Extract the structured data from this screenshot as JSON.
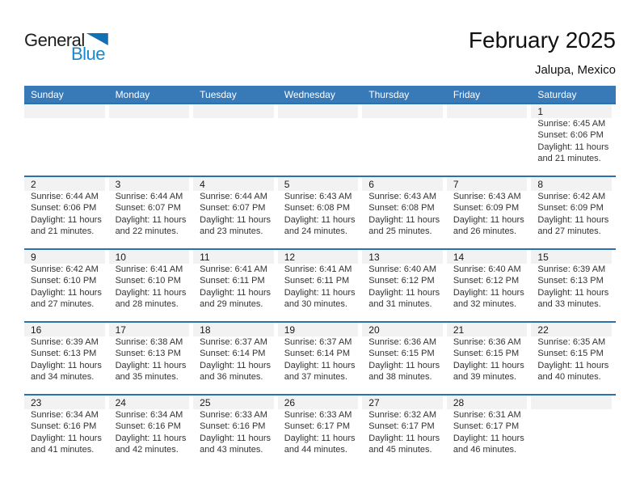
{
  "logo": {
    "part1": "General",
    "part2": "Blue"
  },
  "title": "February 2025",
  "location": "Jalupa, Mexico",
  "weekday_headers": [
    "Sunday",
    "Monday",
    "Tuesday",
    "Wednesday",
    "Thursday",
    "Friday",
    "Saturday"
  ],
  "colors": {
    "header_bg": "#3879b8",
    "row_border": "#2c71ae",
    "number_band_bg": "#f2f2f2",
    "logo_blue_text": "#1988cb",
    "logo_triangle": "#1470b4"
  },
  "weeks": [
    [
      {
        "day": "",
        "lines": []
      },
      {
        "day": "",
        "lines": []
      },
      {
        "day": "",
        "lines": []
      },
      {
        "day": "",
        "lines": []
      },
      {
        "day": "",
        "lines": []
      },
      {
        "day": "",
        "lines": []
      },
      {
        "day": "1",
        "lines": [
          "Sunrise: 6:45 AM",
          "Sunset: 6:06 PM",
          "Daylight: 11 hours",
          "and 21 minutes."
        ]
      }
    ],
    [
      {
        "day": "2",
        "lines": [
          "Sunrise: 6:44 AM",
          "Sunset: 6:06 PM",
          "Daylight: 11 hours",
          "and 21 minutes."
        ]
      },
      {
        "day": "3",
        "lines": [
          "Sunrise: 6:44 AM",
          "Sunset: 6:07 PM",
          "Daylight: 11 hours",
          "and 22 minutes."
        ]
      },
      {
        "day": "4",
        "lines": [
          "Sunrise: 6:44 AM",
          "Sunset: 6:07 PM",
          "Daylight: 11 hours",
          "and 23 minutes."
        ]
      },
      {
        "day": "5",
        "lines": [
          "Sunrise: 6:43 AM",
          "Sunset: 6:08 PM",
          "Daylight: 11 hours",
          "and 24 minutes."
        ]
      },
      {
        "day": "6",
        "lines": [
          "Sunrise: 6:43 AM",
          "Sunset: 6:08 PM",
          "Daylight: 11 hours",
          "and 25 minutes."
        ]
      },
      {
        "day": "7",
        "lines": [
          "Sunrise: 6:43 AM",
          "Sunset: 6:09 PM",
          "Daylight: 11 hours",
          "and 26 minutes."
        ]
      },
      {
        "day": "8",
        "lines": [
          "Sunrise: 6:42 AM",
          "Sunset: 6:09 PM",
          "Daylight: 11 hours",
          "and 27 minutes."
        ]
      }
    ],
    [
      {
        "day": "9",
        "lines": [
          "Sunrise: 6:42 AM",
          "Sunset: 6:10 PM",
          "Daylight: 11 hours",
          "and 27 minutes."
        ]
      },
      {
        "day": "10",
        "lines": [
          "Sunrise: 6:41 AM",
          "Sunset: 6:10 PM",
          "Daylight: 11 hours",
          "and 28 minutes."
        ]
      },
      {
        "day": "11",
        "lines": [
          "Sunrise: 6:41 AM",
          "Sunset: 6:11 PM",
          "Daylight: 11 hours",
          "and 29 minutes."
        ]
      },
      {
        "day": "12",
        "lines": [
          "Sunrise: 6:41 AM",
          "Sunset: 6:11 PM",
          "Daylight: 11 hours",
          "and 30 minutes."
        ]
      },
      {
        "day": "13",
        "lines": [
          "Sunrise: 6:40 AM",
          "Sunset: 6:12 PM",
          "Daylight: 11 hours",
          "and 31 minutes."
        ]
      },
      {
        "day": "14",
        "lines": [
          "Sunrise: 6:40 AM",
          "Sunset: 6:12 PM",
          "Daylight: 11 hours",
          "and 32 minutes."
        ]
      },
      {
        "day": "15",
        "lines": [
          "Sunrise: 6:39 AM",
          "Sunset: 6:13 PM",
          "Daylight: 11 hours",
          "and 33 minutes."
        ]
      }
    ],
    [
      {
        "day": "16",
        "lines": [
          "Sunrise: 6:39 AM",
          "Sunset: 6:13 PM",
          "Daylight: 11 hours",
          "and 34 minutes."
        ]
      },
      {
        "day": "17",
        "lines": [
          "Sunrise: 6:38 AM",
          "Sunset: 6:13 PM",
          "Daylight: 11 hours",
          "and 35 minutes."
        ]
      },
      {
        "day": "18",
        "lines": [
          "Sunrise: 6:37 AM",
          "Sunset: 6:14 PM",
          "Daylight: 11 hours",
          "and 36 minutes."
        ]
      },
      {
        "day": "19",
        "lines": [
          "Sunrise: 6:37 AM",
          "Sunset: 6:14 PM",
          "Daylight: 11 hours",
          "and 37 minutes."
        ]
      },
      {
        "day": "20",
        "lines": [
          "Sunrise: 6:36 AM",
          "Sunset: 6:15 PM",
          "Daylight: 11 hours",
          "and 38 minutes."
        ]
      },
      {
        "day": "21",
        "lines": [
          "Sunrise: 6:36 AM",
          "Sunset: 6:15 PM",
          "Daylight: 11 hours",
          "and 39 minutes."
        ]
      },
      {
        "day": "22",
        "lines": [
          "Sunrise: 6:35 AM",
          "Sunset: 6:15 PM",
          "Daylight: 11 hours",
          "and 40 minutes."
        ]
      }
    ],
    [
      {
        "day": "23",
        "lines": [
          "Sunrise: 6:34 AM",
          "Sunset: 6:16 PM",
          "Daylight: 11 hours",
          "and 41 minutes."
        ]
      },
      {
        "day": "24",
        "lines": [
          "Sunrise: 6:34 AM",
          "Sunset: 6:16 PM",
          "Daylight: 11 hours",
          "and 42 minutes."
        ]
      },
      {
        "day": "25",
        "lines": [
          "Sunrise: 6:33 AM",
          "Sunset: 6:16 PM",
          "Daylight: 11 hours",
          "and 43 minutes."
        ]
      },
      {
        "day": "26",
        "lines": [
          "Sunrise: 6:33 AM",
          "Sunset: 6:17 PM",
          "Daylight: 11 hours",
          "and 44 minutes."
        ]
      },
      {
        "day": "27",
        "lines": [
          "Sunrise: 6:32 AM",
          "Sunset: 6:17 PM",
          "Daylight: 11 hours",
          "and 45 minutes."
        ]
      },
      {
        "day": "28",
        "lines": [
          "Sunrise: 6:31 AM",
          "Sunset: 6:17 PM",
          "Daylight: 11 hours",
          "and 46 minutes."
        ]
      },
      {
        "day": "",
        "lines": []
      }
    ]
  ]
}
